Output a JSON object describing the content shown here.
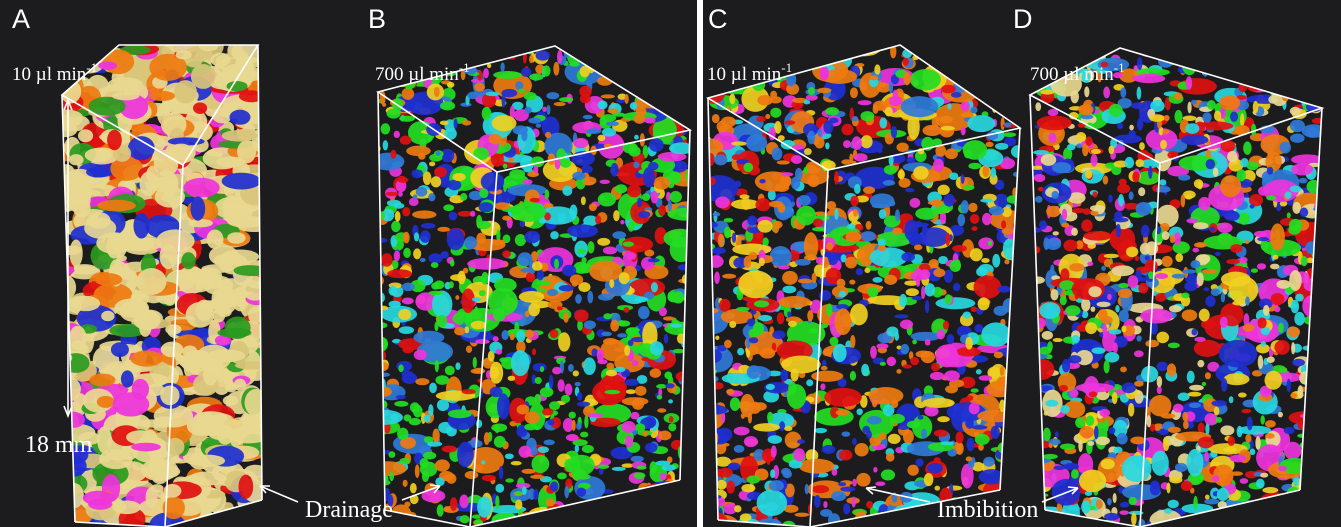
{
  "panels": [
    {
      "label": "A",
      "rate": "10 µl min",
      "rate_exponent": "-1"
    },
    {
      "label": "B",
      "rate": "700 µl min",
      "rate_exponent": "-1"
    },
    {
      "label": "C",
      "rate": "10 µl min",
      "rate_exponent": "-1"
    },
    {
      "label": "D",
      "rate": "700 µl min",
      "rate_exponent": "-1"
    }
  ],
  "scale_label": "18 mm",
  "annotations": [
    {
      "text": "Drainage"
    },
    {
      "text": "Imbibition"
    }
  ]
}
